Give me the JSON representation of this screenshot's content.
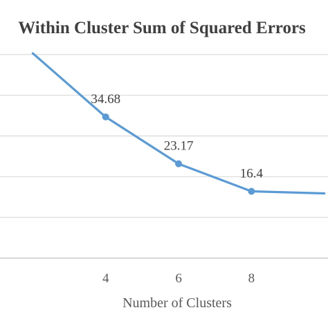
{
  "chart_data": {
    "type": "line",
    "title": "Within Cluster Sum of Squared Errors",
    "xlabel": "Number of Clusters",
    "ylabel": "",
    "x_ticks": [
      4,
      6,
      8
    ],
    "xlim": [
      1.1,
      10.1
    ],
    "ylim": [
      0,
      60
    ],
    "y_gridlines": [
      10,
      20,
      30,
      40,
      50
    ],
    "grid": true,
    "legend": "none",
    "series": [
      {
        "color": "#5b9bd5",
        "x": [
          2,
          4,
          6,
          8,
          10
        ],
        "y": [
          50.3,
          34.68,
          23.17,
          16.4,
          15.9
        ],
        "data_labels": [
          "",
          "34.68",
          "23.17",
          "16.4",
          ""
        ]
      }
    ]
  }
}
